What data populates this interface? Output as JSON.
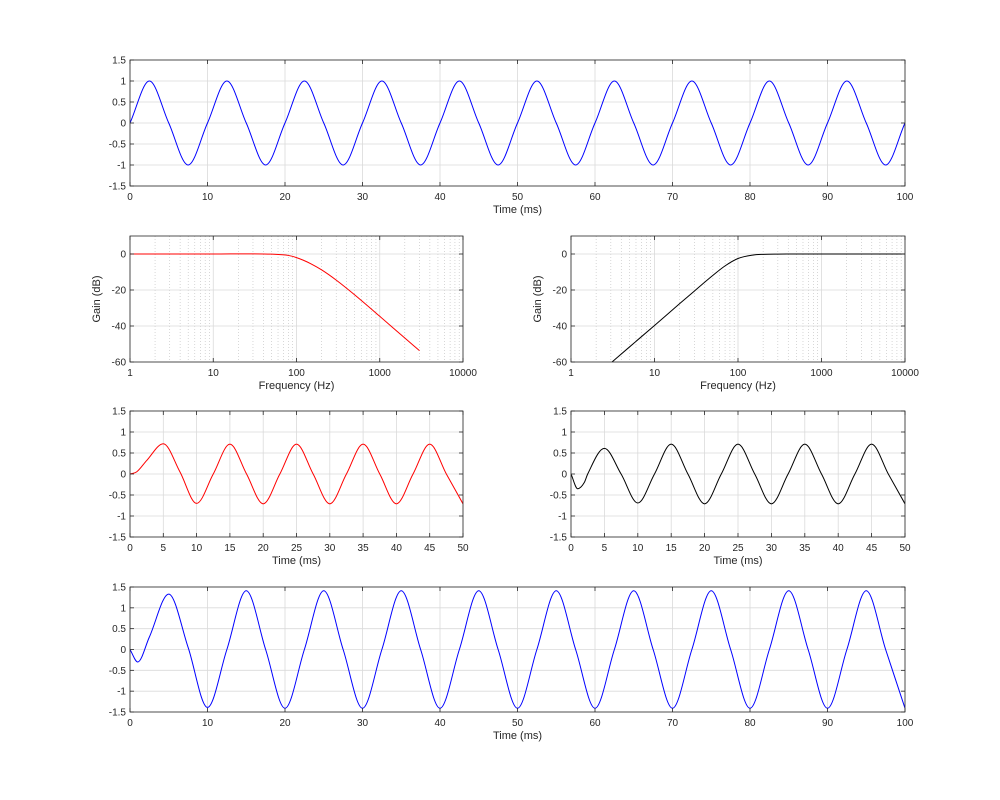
{
  "chart_data": [
    {
      "id": "top",
      "type": "line",
      "xlabel": "Time (ms)",
      "ylabel": "",
      "xlim": [
        0,
        100
      ],
      "ylim": [
        -1.5,
        1.5
      ],
      "x_scale": "linear",
      "grid": true,
      "xticks": [
        "0",
        "10",
        "20",
        "30",
        "40",
        "50",
        "60",
        "70",
        "80",
        "90",
        "100"
      ],
      "yticks": [
        "-1.5",
        "-1",
        "-0.5",
        "0",
        "0.5",
        "1",
        "1.5"
      ],
      "series": [
        {
          "color": "#0000ff",
          "x": [
            0,
            2.5,
            5,
            7.5,
            10,
            12.5,
            15,
            17.5,
            20,
            22.5,
            25,
            27.5,
            30,
            32.5,
            35,
            37.5,
            40,
            42.5,
            45,
            47.5,
            50,
            52.5,
            55,
            57.5,
            60,
            62.5,
            65,
            67.5,
            70,
            72.5,
            75,
            77.5,
            80,
            82.5,
            85,
            87.5,
            90,
            92.5,
            95,
            97.5,
            100
          ],
          "y": [
            0,
            1,
            0,
            -1,
            0,
            1,
            0,
            -1,
            0,
            1,
            0,
            -1,
            0,
            1,
            0,
            -1,
            0,
            1,
            0,
            -1,
            0,
            1,
            0,
            -1,
            0,
            1,
            0,
            -1,
            0,
            1,
            0,
            -1,
            0,
            1,
            0,
            -1,
            0,
            1,
            0,
            -1,
            0
          ]
        }
      ]
    },
    {
      "id": "lowpass",
      "type": "line",
      "xlabel": "Frequency (Hz)",
      "ylabel": "Gain (dB)",
      "xlim": [
        1,
        10000
      ],
      "ylim": [
        -60,
        10
      ],
      "x_scale": "log",
      "grid": true,
      "xticks": [
        "1",
        "10",
        "100",
        "1000",
        "10000"
      ],
      "yticks": [
        "-60",
        "-40",
        "-20",
        "0"
      ],
      "series": [
        {
          "color": "#ff0000",
          "x": [
            1,
            10,
            50,
            80,
            100,
            120,
            150,
            200,
            300,
            500,
            1000,
            2000,
            3000
          ],
          "y": [
            0,
            0,
            -0.1,
            -0.8,
            -2,
            -3.4,
            -5.5,
            -8.8,
            -14.5,
            -22.7,
            -34.6,
            -46.7,
            -53.7
          ]
        }
      ]
    },
    {
      "id": "highpass",
      "type": "line",
      "xlabel": "Frequency (Hz)",
      "ylabel": "Gain (dB)",
      "xlim": [
        1,
        10000
      ],
      "ylim": [
        -60,
        10
      ],
      "x_scale": "log",
      "grid": true,
      "xticks": [
        "1",
        "10",
        "100",
        "1000",
        "10000"
      ],
      "yticks": [
        "-60",
        "-40",
        "-20",
        "0"
      ],
      "series": [
        {
          "color": "#000000",
          "x": [
            3.1,
            5,
            10,
            20,
            30,
            50,
            70,
            100,
            150,
            200,
            300,
            500,
            1000,
            10000
          ],
          "y": [
            -60,
            -51.7,
            -39.7,
            -27.6,
            -20.6,
            -11.9,
            -6.6,
            -2.5,
            -0.6,
            -0.2,
            -0.05,
            0,
            0,
            0
          ]
        }
      ]
    },
    {
      "id": "lowpass-time",
      "type": "line",
      "xlabel": "Time (ms)",
      "ylabel": "",
      "xlim": [
        0,
        50
      ],
      "ylim": [
        -1.5,
        1.5
      ],
      "x_scale": "linear",
      "grid": true,
      "xticks": [
        "0",
        "5",
        "10",
        "15",
        "20",
        "25",
        "30",
        "35",
        "40",
        "45",
        "50"
      ],
      "yticks": [
        "-1.5",
        "-1",
        "-0.5",
        "0",
        "0.5",
        "1",
        "1.5"
      ],
      "series": [
        {
          "color": "#ff0000",
          "x": [
            0,
            1,
            2.5,
            5,
            7.5,
            10,
            12.5,
            15,
            17.5,
            20,
            22.5,
            25,
            27.5,
            30,
            32.5,
            35,
            37.5,
            40,
            42.5,
            45,
            47.5,
            50
          ],
          "y": [
            0,
            0.05,
            0.32,
            0.72,
            0.05,
            -0.7,
            0,
            0.71,
            0,
            -0.71,
            0,
            0.71,
            0,
            -0.71,
            0,
            0.71,
            0,
            -0.71,
            0,
            0.71,
            0,
            -0.71
          ]
        }
      ]
    },
    {
      "id": "highpass-time",
      "type": "line",
      "xlabel": "Time (ms)",
      "ylabel": "",
      "xlim": [
        0,
        50
      ],
      "ylim": [
        -1.5,
        1.5
      ],
      "x_scale": "linear",
      "grid": true,
      "xticks": [
        "0",
        "5",
        "10",
        "15",
        "20",
        "25",
        "30",
        "35",
        "40",
        "45",
        "50"
      ],
      "yticks": [
        "-1.5",
        "-1",
        "-0.5",
        "0",
        "0.5",
        "1",
        "1.5"
      ],
      "series": [
        {
          "color": "#000000",
          "x": [
            0,
            1,
            2,
            2.5,
            5,
            7.5,
            10,
            12.5,
            15,
            17.5,
            20,
            22.5,
            25,
            27.5,
            30,
            32.5,
            35,
            37.5,
            40,
            42.5,
            45,
            47.5,
            50
          ],
          "y": [
            0,
            -0.35,
            -0.2,
            0,
            0.61,
            0,
            -0.69,
            0,
            0.71,
            0,
            -0.71,
            0,
            0.71,
            0,
            -0.71,
            0,
            0.71,
            0,
            -0.71,
            0,
            0.71,
            0,
            -0.71
          ]
        }
      ]
    },
    {
      "id": "bottom",
      "type": "line",
      "xlabel": "Time (ms)",
      "ylabel": "",
      "xlim": [
        0,
        100
      ],
      "ylim": [
        -1.5,
        1.5
      ],
      "x_scale": "linear",
      "grid": true,
      "xticks": [
        "0",
        "10",
        "20",
        "30",
        "40",
        "50",
        "60",
        "70",
        "80",
        "90",
        "100"
      ],
      "yticks": [
        "-1.5",
        "-1",
        "-0.5",
        "0",
        "0.5",
        "1",
        "1.5"
      ],
      "series": [
        {
          "color": "#0000ff",
          "x": [
            0,
            1,
            2.5,
            5,
            7.5,
            10,
            12.5,
            15,
            17.5,
            20,
            22.5,
            25,
            27.5,
            30,
            32.5,
            35,
            37.5,
            40,
            42.5,
            45,
            47.5,
            50,
            52.5,
            55,
            57.5,
            60,
            62.5,
            65,
            67.5,
            70,
            72.5,
            75,
            77.5,
            80,
            82.5,
            85,
            87.5,
            90,
            92.5,
            95,
            97.5,
            100
          ],
          "y": [
            0,
            -0.3,
            0.3,
            1.33,
            0.05,
            -1.39,
            0,
            1.41,
            0,
            -1.41,
            0,
            1.41,
            0,
            -1.41,
            0,
            1.41,
            0,
            -1.41,
            0,
            1.41,
            0,
            -1.41,
            0,
            1.41,
            0,
            -1.41,
            0,
            1.41,
            0,
            -1.41,
            0,
            1.41,
            0,
            -1.41,
            0,
            1.41,
            0,
            -1.41,
            0,
            1.41,
            0,
            -1.41
          ]
        }
      ]
    }
  ]
}
